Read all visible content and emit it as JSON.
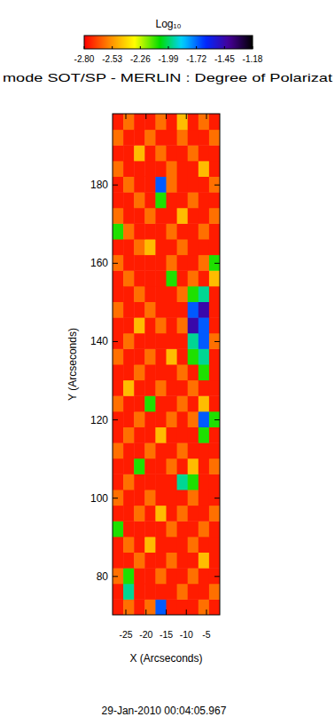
{
  "chart_data": {
    "type": "heatmap",
    "title": "mode SOT/SP - MERLIN : Degree of Polarizat",
    "x_label": "X (Arcseconds)",
    "y_label": "Y (Arcseconds)",
    "footer": "29-Jan-2010 00:04:05.967",
    "xlim": [
      -28.3,
      -1.7
    ],
    "ylim": [
      70.2,
      198.2
    ],
    "xticks": [
      -25,
      -20,
      -15,
      -10,
      -5
    ],
    "yticks": [
      80,
      100,
      120,
      140,
      160,
      180
    ],
    "z": [
      [
        -2.75,
        -2.6,
        -2.75,
        -2.6,
        -1.7,
        -2.75,
        -2.75,
        -2.75,
        -2.6,
        -2.75
      ],
      [
        -2.75,
        -1.95,
        -2.75,
        -2.75,
        -2.75,
        -2.75,
        -2.6,
        -2.75,
        -2.75,
        -2.6
      ],
      [
        -2.6,
        -2.1,
        -2.75,
        -2.75,
        -2.6,
        -2.75,
        -2.75,
        -2.6,
        -2.75,
        -2.75
      ],
      [
        -2.75,
        -2.75,
        -2.6,
        -2.75,
        -2.75,
        -2.6,
        -2.75,
        -2.75,
        -2.45,
        -2.75
      ],
      [
        -2.75,
        -2.6,
        -2.75,
        -2.45,
        -2.75,
        -2.75,
        -2.75,
        -2.6,
        -2.75,
        -2.75
      ],
      [
        -2.1,
        -2.75,
        -2.75,
        -2.75,
        -2.75,
        -2.6,
        -2.75,
        -2.75,
        -2.6,
        -2.75
      ],
      [
        -2.75,
        -2.75,
        -2.6,
        -2.75,
        -2.45,
        -2.75,
        -2.6,
        -2.75,
        -2.75,
        -2.6
      ],
      [
        -2.6,
        -2.75,
        -2.75,
        -2.6,
        -2.75,
        -2.75,
        -2.75,
        -2.6,
        -2.75,
        -2.75
      ],
      [
        -2.75,
        -2.6,
        -2.75,
        -2.75,
        -2.75,
        -2.75,
        -1.95,
        -2.1,
        -2.75,
        -2.75
      ],
      [
        -2.75,
        -2.75,
        -2.1,
        -2.75,
        -2.75,
        -2.6,
        -2.75,
        -2.45,
        -2.75,
        -2.6
      ],
      [
        -2.6,
        -2.75,
        -2.75,
        -2.6,
        -2.75,
        -2.75,
        -2.6,
        -2.75,
        -2.75,
        -2.75
      ],
      [
        -2.75,
        -2.6,
        -2.75,
        -2.75,
        -2.45,
        -2.75,
        -2.75,
        -2.75,
        -2.1,
        -2.75
      ],
      [
        -2.75,
        -2.75,
        -2.6,
        -2.75,
        -2.75,
        -2.6,
        -2.75,
        -2.6,
        -1.7,
        -2.1
      ],
      [
        -2.6,
        -2.75,
        -2.75,
        -2.1,
        -2.75,
        -2.75,
        -2.6,
        -2.75,
        -2.45,
        -2.75
      ],
      [
        -2.75,
        -2.45,
        -2.75,
        -2.75,
        -2.6,
        -2.75,
        -2.75,
        -2.6,
        -2.75,
        -2.75
      ],
      [
        -2.75,
        -2.75,
        -2.6,
        -2.75,
        -2.75,
        -2.75,
        -2.6,
        -2.75,
        -2.1,
        -2.75
      ],
      [
        -2.6,
        -2.75,
        -2.75,
        -2.6,
        -2.75,
        -2.45,
        -2.75,
        -2.1,
        -1.95,
        -2.75
      ],
      [
        -2.75,
        -2.6,
        -2.75,
        -2.75,
        -2.75,
        -2.75,
        -2.75,
        -1.95,
        -1.7,
        -2.6
      ],
      [
        -2.75,
        -2.75,
        -2.45,
        -2.75,
        -2.6,
        -2.75,
        -2.6,
        -1.45,
        -1.7,
        -2.75
      ],
      [
        -2.6,
        -2.75,
        -2.75,
        -2.6,
        -2.75,
        -2.75,
        -2.75,
        -1.7,
        -1.45,
        -2.75
      ],
      [
        -2.75,
        -2.75,
        -2.6,
        -2.75,
        -2.75,
        -2.75,
        -2.6,
        -2.1,
        -1.95,
        -2.75
      ],
      [
        -2.75,
        -2.6,
        -2.75,
        -2.75,
        -2.75,
        -2.1,
        -2.75,
        -2.6,
        -2.75,
        -2.45
      ],
      [
        -2.6,
        -2.75,
        -2.75,
        -2.75,
        -2.75,
        -2.6,
        -2.75,
        -2.75,
        -2.6,
        -2.1
      ],
      [
        -2.75,
        -2.75,
        -2.6,
        -2.45,
        -2.75,
        -2.75,
        -2.6,
        -2.75,
        -2.75,
        -2.75
      ],
      [
        -2.1,
        -2.6,
        -2.75,
        -2.75,
        -2.75,
        -2.6,
        -2.75,
        -2.75,
        -2.6,
        -2.75
      ],
      [
        -2.6,
        -2.75,
        -2.75,
        -2.6,
        -2.75,
        -2.75,
        -2.45,
        -2.75,
        -2.75,
        -2.6
      ],
      [
        -2.75,
        -2.75,
        -2.6,
        -2.75,
        -2.1,
        -2.75,
        -2.75,
        -2.6,
        -2.75,
        -2.75
      ],
      [
        -2.75,
        -2.6,
        -2.75,
        -2.75,
        -1.7,
        -2.6,
        -2.75,
        -2.75,
        -2.75,
        -2.6
      ],
      [
        -2.6,
        -2.75,
        -2.75,
        -2.75,
        -2.75,
        -2.6,
        -2.75,
        -2.75,
        -2.45,
        -2.75
      ],
      [
        -2.75,
        -2.75,
        -2.45,
        -2.75,
        -2.6,
        -2.75,
        -2.75,
        -2.6,
        -2.75,
        -2.75
      ],
      [
        -2.6,
        -2.75,
        -2.75,
        -2.6,
        -2.75,
        -2.75,
        -2.6,
        -2.75,
        -2.75,
        -2.6
      ],
      [
        -2.75,
        -2.6,
        -2.75,
        -2.75,
        -2.6,
        -2.75,
        -2.45,
        -2.75,
        -2.6,
        -2.75
      ]
    ],
    "colorbar": {
      "label": "Log₁₀",
      "range": [
        -2.8,
        -1.18
      ],
      "ticks": [
        {
          "value": -2.8,
          "label": "-2.80"
        },
        -2.53,
        -2.26,
        -1.99,
        -1.72,
        -1.45,
        -1.18
      ]
    }
  }
}
